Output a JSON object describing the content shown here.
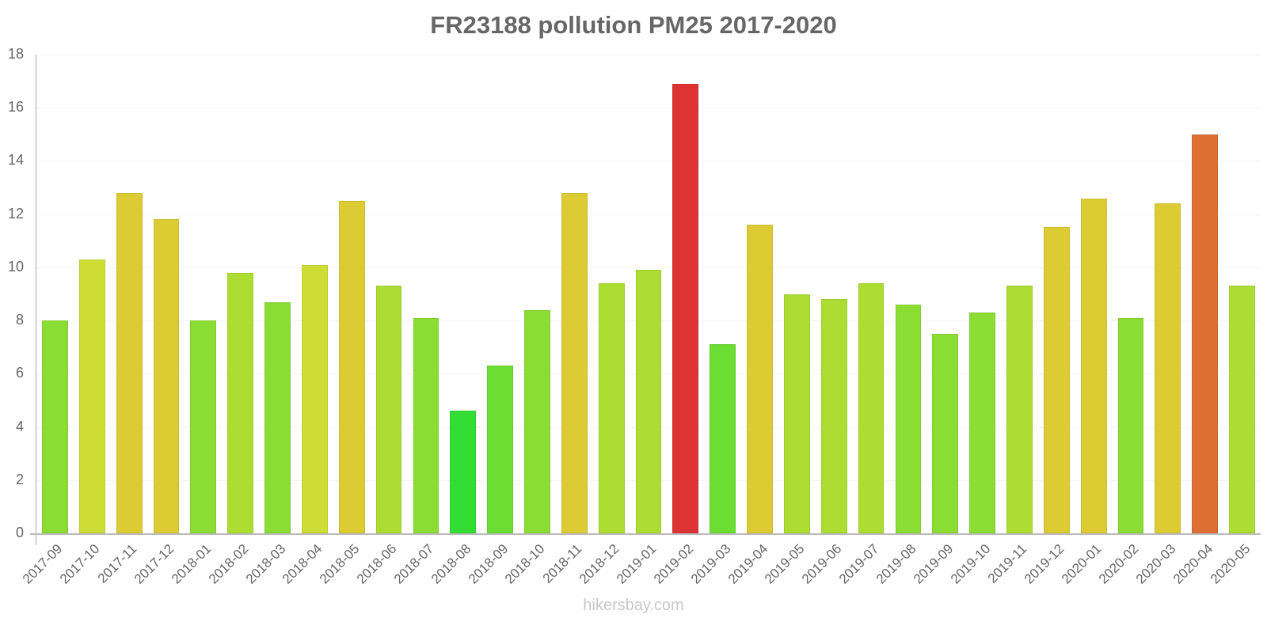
{
  "title": "FR23188 pollution PM25 2017-2020",
  "footer": "hikersbay.com",
  "y_ticks": [
    "0",
    "2",
    "4",
    "6",
    "8",
    "10",
    "12",
    "14",
    "16",
    "18"
  ],
  "chart_data": {
    "type": "bar",
    "title": "FR23188 pollution PM25 2017-2020",
    "xlabel": "",
    "ylabel": "",
    "ylim": [
      0,
      18
    ],
    "grid": true,
    "legend": null,
    "categories": [
      "2017-09",
      "2017-10",
      "2017-11",
      "2017-12",
      "2018-01",
      "2018-02",
      "2018-03",
      "2018-04",
      "2018-05",
      "2018-06",
      "2018-07",
      "2018-08",
      "2018-09",
      "2018-10",
      "2018-11",
      "2018-12",
      "2019-01",
      "2019-02",
      "2019-03",
      "2019-04",
      "2019-05",
      "2019-06",
      "2019-07",
      "2019-08",
      "2019-09",
      "2019-10",
      "2019-11",
      "2019-12",
      "2020-01",
      "2020-02",
      "2020-03",
      "2020-04",
      "2020-05"
    ],
    "values": [
      8.0,
      10.3,
      12.8,
      11.8,
      8.0,
      9.8,
      8.7,
      10.1,
      12.5,
      9.3,
      8.1,
      4.6,
      6.3,
      8.4,
      12.8,
      9.4,
      9.9,
      16.9,
      7.1,
      11.6,
      9.0,
      8.8,
      9.4,
      8.6,
      7.5,
      8.3,
      9.3,
      11.5,
      12.6,
      8.1,
      12.4,
      15.0,
      9.3
    ],
    "colors": [
      "#8cdd33",
      "#cddd33",
      "#ddcb33",
      "#ddcb33",
      "#8cdd33",
      "#addd33",
      "#8cdd33",
      "#cddd33",
      "#ddcb33",
      "#addd33",
      "#8cdd33",
      "#33dd33",
      "#6bdd33",
      "#8cdd33",
      "#ddcb33",
      "#addd33",
      "#addd33",
      "#dd3333",
      "#6bdd33",
      "#ddcb33",
      "#addd33",
      "#addd33",
      "#addd33",
      "#8cdd33",
      "#8cdd33",
      "#8cdd33",
      "#addd33",
      "#ddcb33",
      "#ddcb33",
      "#8cdd33",
      "#ddcb33",
      "#dd6f33",
      "#addd33"
    ]
  }
}
